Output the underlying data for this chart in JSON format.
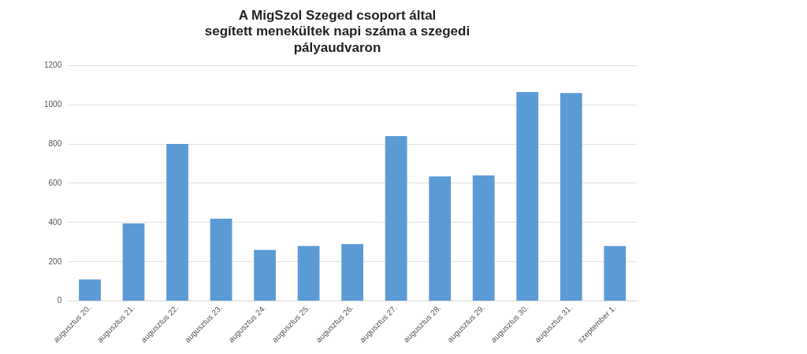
{
  "chart_data": {
    "type": "bar",
    "title": [
      "A MigSzol Szeged csoport által",
      "segített menekültek napi száma a szegedi",
      "pályaudvaron"
    ],
    "categories": [
      "augusztus 20.",
      "augusztus 21.",
      "augusztus 22.",
      "augusztus 23.",
      "augusztus 24.",
      "augusztus 25.",
      "augusztus 26.",
      "augusztus 27.",
      "augusztus 28.",
      "augusztus 29.",
      "augusztus 30.",
      "augusztus 31.",
      "szeptember 1."
    ],
    "values": [
      110,
      395,
      800,
      420,
      260,
      280,
      290,
      840,
      635,
      640,
      1065,
      1060,
      280
    ],
    "color": "#5b9bd5",
    "ylim": [
      0,
      1200
    ],
    "yticks": [
      0,
      200,
      400,
      600,
      800,
      1000,
      1200
    ],
    "grid": "y",
    "legend": false
  }
}
